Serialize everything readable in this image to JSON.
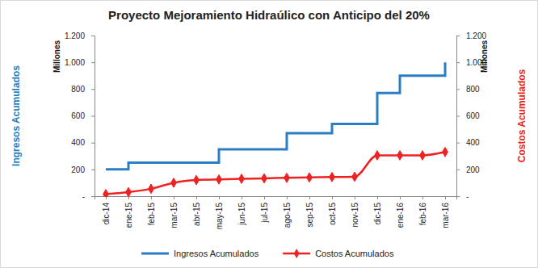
{
  "chart_data": {
    "type": "line",
    "title": "Proyecto Mejoramiento Hidraúlico con Anticipo del 20%",
    "y_label": "Ingresos Acumulados",
    "y2_label": "Costos Acumulados",
    "annotations": [
      "Millones",
      "Millones"
    ],
    "categories": [
      "dic-14",
      "ene-15",
      "feb-15",
      "mar-15",
      "abr-15",
      "may-15",
      "jun-15",
      "jul-15",
      "ago-15",
      "sep-15",
      "oct-15",
      "nov-15",
      "dic-15",
      "ene-16",
      "feb-16",
      "mar-16"
    ],
    "series": [
      {
        "name": "Ingresos Acumulados",
        "color": "#2a7fc4",
        "type": "step",
        "marker": "none",
        "line_style": "solid",
        "values": [
          200,
          250,
          250,
          250,
          250,
          350,
          350,
          350,
          470,
          470,
          540,
          540,
          770,
          900,
          900,
          1000
        ]
      },
      {
        "name": "Costos Acumulados",
        "color": "#ee2222",
        "type": "line",
        "marker": "diamond",
        "line_style": "solid",
        "axis": "y2",
        "values": [
          15,
          30,
          55,
          100,
          120,
          125,
          130,
          133,
          137,
          140,
          143,
          145,
          305,
          305,
          305,
          330
        ]
      }
    ],
    "ylim": [
      0,
      1200
    ],
    "yticks": [
      {
        "value": 0,
        "label": "-"
      },
      200,
      400,
      600,
      800,
      {
        "value": 1000,
        "label": "1.000"
      },
      {
        "value": 1200,
        "label": "1.200"
      }
    ],
    "y2lim": [
      0,
      1200
    ],
    "y2ticks": [
      {
        "value": 0,
        "label": "-"
      },
      200,
      400,
      600,
      800,
      {
        "value": 1000,
        "label": "1.000"
      },
      {
        "value": 1200,
        "label": "1.200"
      }
    ],
    "grid": false,
    "legend": "bottom"
  }
}
